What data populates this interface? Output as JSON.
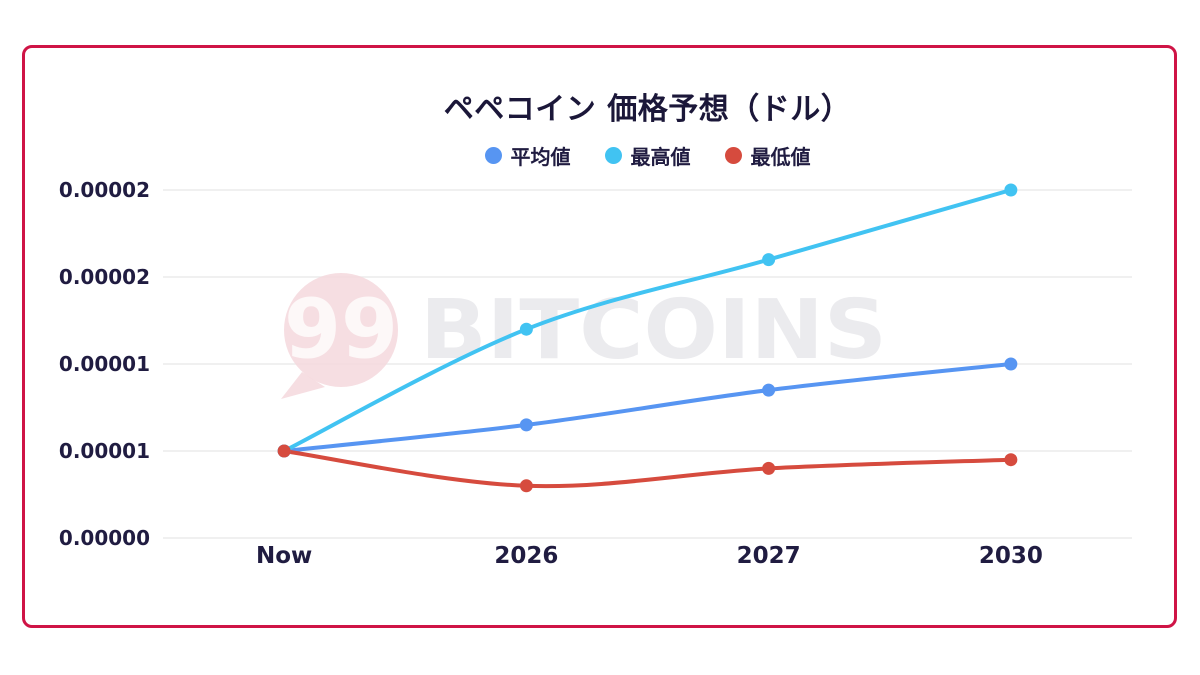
{
  "frame": {
    "border_color": "#cf1446",
    "background": "#ffffff"
  },
  "title": "ペペコイン 価格予想（ドル）",
  "legend": [
    {
      "label": "平均値",
      "color": "#5795f2"
    },
    {
      "label": "最高値",
      "color": "#41c3f2"
    },
    {
      "label": "最低値",
      "color": "#d64b3e"
    }
  ],
  "watermark": {
    "badge_text": "99",
    "brand_text": "BITCOINS",
    "badge_color": "#f5d8dd",
    "badge_text_color": "#fdf8f8",
    "brand_color": "#ebebee"
  },
  "chart_data": {
    "type": "line",
    "title": "ペペコイン 価格予想（ドル）",
    "x_categories": [
      "Now",
      "2026",
      "2027",
      "2030"
    ],
    "series": [
      {
        "name": "平均値",
        "color": "#5795f2",
        "values": [
          5e-06,
          6.5e-06,
          8.5e-06,
          1e-05
        ]
      },
      {
        "name": "最高値",
        "color": "#41c3f2",
        "values": [
          5e-06,
          1.2e-05,
          1.6e-05,
          2e-05
        ]
      },
      {
        "name": "最低値",
        "color": "#d64b3e",
        "values": [
          5e-06,
          3e-06,
          4e-06,
          4.5e-06
        ]
      }
    ],
    "ylim": [
      0,
      2e-05
    ],
    "y_ticks": [
      {
        "value": 2e-05,
        "label": "0.00002"
      },
      {
        "value": 1.5e-05,
        "label": "0.00002"
      },
      {
        "value": 1e-05,
        "label": "0.00001"
      },
      {
        "value": 5e-06,
        "label": "0.00001"
      },
      {
        "value": 0,
        "label": "0.00000"
      }
    ],
    "grid": "horizontal",
    "grid_color": "#ececec",
    "legend_position": "top",
    "text_color": "#201c41"
  }
}
